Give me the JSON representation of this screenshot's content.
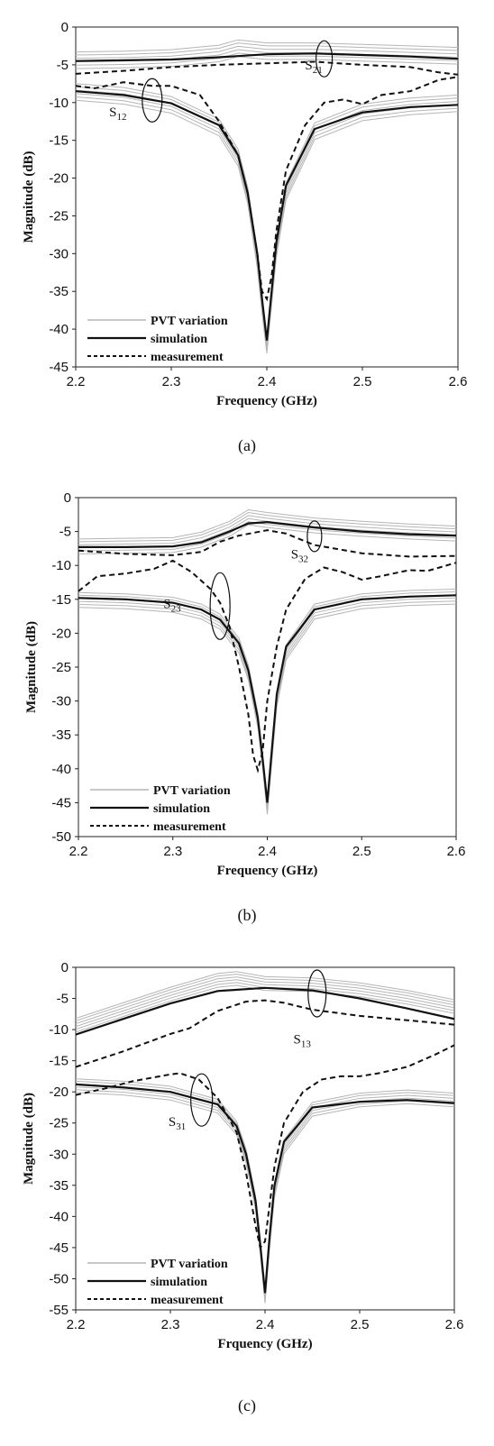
{
  "chart_data": [
    {
      "type": "line",
      "caption": "(a)",
      "xlabel": "Frequency (GHz)",
      "ylabel": "Magnitude (dB)",
      "xlim": [
        2.2,
        2.6
      ],
      "ylim": [
        -45,
        0
      ],
      "xticks": [
        "2.2",
        "2.3",
        "2.4",
        "2.5",
        "2.6"
      ],
      "yticks": [
        "0",
        "-5",
        "-10",
        "-15",
        "-20",
        "-25",
        "-30",
        "-35",
        "-40",
        "-45"
      ],
      "grid": false,
      "legend": [
        "PVT variation",
        "simulation",
        "measurement"
      ],
      "legend_position": "bottom-left",
      "annotations": [
        {
          "base": "S",
          "sub": "21",
          "x": 2.44,
          "y": -5.6
        },
        {
          "base": "S",
          "sub": "12",
          "x": 2.235,
          "y": -11.8
        }
      ],
      "series": [
        {
          "style": "pvt",
          "curve": "S21",
          "x": [
            2.2,
            2.25,
            2.3,
            2.35,
            2.37,
            2.4,
            2.45,
            2.5,
            2.55,
            2.6
          ],
          "y": [
            -4.6,
            -4.5,
            -4.3,
            -3.7,
            -3.0,
            -3.4,
            -3.4,
            -3.6,
            -3.8,
            -4.0
          ]
        },
        {
          "style": "pvt",
          "curve": "S12",
          "x": [
            2.2,
            2.25,
            2.3,
            2.35,
            2.37,
            2.38,
            2.39,
            2.395,
            2.4,
            2.405,
            2.41,
            2.42,
            2.45,
            2.5,
            2.55,
            2.6
          ],
          "y": [
            -8.8,
            -9.3,
            -10.5,
            -13.5,
            -17.5,
            -22.5,
            -31.0,
            -37.0,
            -42.3,
            -36.0,
            -29.5,
            -22.0,
            -14.0,
            -11.5,
            -10.7,
            -10.3
          ]
        },
        {
          "style": "simulation",
          "curve": "S21",
          "x": [
            2.2,
            2.25,
            2.3,
            2.35,
            2.4,
            2.45,
            2.5,
            2.55,
            2.6
          ],
          "y": [
            -4.5,
            -4.4,
            -4.3,
            -4.0,
            -3.6,
            -3.5,
            -3.7,
            -3.9,
            -4.2
          ]
        },
        {
          "style": "simulation",
          "curve": "S12",
          "x": [
            2.2,
            2.25,
            2.3,
            2.35,
            2.37,
            2.38,
            2.39,
            2.395,
            2.4,
            2.405,
            2.41,
            2.42,
            2.45,
            2.5,
            2.55,
            2.6
          ],
          "y": [
            -8.5,
            -9.0,
            -10.1,
            -13.0,
            -17.0,
            -22.0,
            -30.0,
            -36.0,
            -41.5,
            -35.0,
            -28.5,
            -21.0,
            -13.5,
            -11.3,
            -10.6,
            -10.3
          ]
        },
        {
          "style": "measurement",
          "curve": "S21",
          "x": [
            2.2,
            2.25,
            2.3,
            2.35,
            2.4,
            2.45,
            2.5,
            2.55,
            2.58,
            2.6
          ],
          "y": [
            -6.2,
            -5.8,
            -5.3,
            -5.0,
            -4.8,
            -4.6,
            -5.0,
            -5.3,
            -6.0,
            -6.3
          ]
        },
        {
          "style": "measurement",
          "curve": "S12",
          "x": [
            2.2,
            2.22,
            2.25,
            2.28,
            2.3,
            2.33,
            2.35,
            2.37,
            2.38,
            2.39,
            2.395,
            2.4,
            2.405,
            2.41,
            2.42,
            2.44,
            2.46,
            2.48,
            2.5,
            2.52,
            2.55,
            2.58,
            2.6
          ],
          "y": [
            -7.8,
            -8.1,
            -7.3,
            -7.8,
            -7.8,
            -9.0,
            -12.5,
            -17.0,
            -22.0,
            -30.0,
            -35.0,
            -36.0,
            -33.0,
            -27.0,
            -19.0,
            -13.0,
            -10.0,
            -9.6,
            -10.2,
            -9.0,
            -8.5,
            -7.0,
            -6.6
          ]
        }
      ]
    },
    {
      "type": "line",
      "caption": "(b)",
      "xlabel": "Frequency (GHz)",
      "ylabel": "Magnitude (dB)",
      "xlim": [
        2.2,
        2.6
      ],
      "ylim": [
        -50,
        0
      ],
      "xticks": [
        "2.2",
        "2.3",
        "2.4",
        "2.5",
        "2.6"
      ],
      "yticks": [
        "0",
        "-5",
        "-10",
        "-15",
        "-20",
        "-25",
        "-30",
        "-35",
        "-40",
        "-45",
        "-50"
      ],
      "grid": false,
      "legend": [
        "PVT variation",
        "simulation",
        "measurement"
      ],
      "legend_position": "bottom-left",
      "annotations": [
        {
          "base": "S",
          "sub": "32",
          "x": 2.425,
          "y": -9.0
        },
        {
          "base": "S",
          "sub": "23",
          "x": 2.29,
          "y": -16.3
        }
      ],
      "series": [
        {
          "style": "pvt",
          "curve": "S32",
          "x": [
            2.2,
            2.25,
            2.3,
            2.33,
            2.36,
            2.38,
            2.4,
            2.45,
            2.5,
            2.55,
            2.6
          ],
          "y": [
            -7.4,
            -7.3,
            -7.2,
            -6.4,
            -4.8,
            -3.1,
            -3.5,
            -4.3,
            -4.8,
            -5.2,
            -5.5
          ]
        },
        {
          "style": "pvt",
          "curve": "S23",
          "x": [
            2.2,
            2.25,
            2.3,
            2.33,
            2.35,
            2.37,
            2.38,
            2.39,
            2.395,
            2.4,
            2.405,
            2.41,
            2.42,
            2.45,
            2.5,
            2.55,
            2.6
          ],
          "y": [
            -15.3,
            -15.5,
            -16.0,
            -17.0,
            -18.5,
            -22.0,
            -26.0,
            -33.0,
            -39.0,
            -45.8,
            -38.0,
            -30.0,
            -23.0,
            -17.0,
            -15.5,
            -15.0,
            -14.8
          ]
        },
        {
          "style": "simulation",
          "curve": "S32",
          "x": [
            2.2,
            2.25,
            2.3,
            2.33,
            2.36,
            2.38,
            2.4,
            2.45,
            2.5,
            2.55,
            2.6
          ],
          "y": [
            -7.3,
            -7.3,
            -7.2,
            -6.6,
            -5.0,
            -3.8,
            -3.6,
            -4.4,
            -5.0,
            -5.4,
            -5.6
          ]
        },
        {
          "style": "simulation",
          "curve": "S23",
          "x": [
            2.2,
            2.25,
            2.3,
            2.33,
            2.35,
            2.37,
            2.38,
            2.39,
            2.395,
            2.4,
            2.405,
            2.41,
            2.42,
            2.45,
            2.5,
            2.55,
            2.6
          ],
          "y": [
            -14.8,
            -15.0,
            -15.5,
            -16.5,
            -18.0,
            -21.5,
            -25.5,
            -32.5,
            -38.5,
            -45.0,
            -37.0,
            -29.0,
            -22.0,
            -16.5,
            -15.0,
            -14.6,
            -14.4
          ]
        },
        {
          "style": "measurement",
          "curve": "S32",
          "x": [
            2.2,
            2.25,
            2.3,
            2.33,
            2.35,
            2.37,
            2.4,
            2.42,
            2.45,
            2.5,
            2.55,
            2.6
          ],
          "y": [
            -7.8,
            -8.3,
            -8.5,
            -8.0,
            -6.5,
            -5.6,
            -4.8,
            -5.3,
            -7.0,
            -8.2,
            -8.7,
            -8.6
          ]
        },
        {
          "style": "measurement",
          "curve": "S23",
          "x": [
            2.2,
            2.22,
            2.25,
            2.28,
            2.3,
            2.32,
            2.34,
            2.35,
            2.36,
            2.37,
            2.38,
            2.385,
            2.39,
            2.395,
            2.4,
            2.41,
            2.42,
            2.44,
            2.46,
            2.48,
            2.5,
            2.52,
            2.55,
            2.57,
            2.6
          ],
          "y": [
            -13.8,
            -11.6,
            -11.2,
            -10.5,
            -9.3,
            -11.0,
            -13.5,
            -15.5,
            -19.0,
            -25.0,
            -32.0,
            -38.0,
            -40.2,
            -37.5,
            -30.0,
            -22.0,
            -16.5,
            -12.0,
            -10.3,
            -11.0,
            -12.1,
            -11.6,
            -10.7,
            -10.8,
            -9.6
          ]
        }
      ]
    },
    {
      "type": "line",
      "caption": "(c)",
      "xlabel": "Frquency (GHz)",
      "ylabel": "Magnitude (dB)",
      "xlim": [
        2.2,
        2.6
      ],
      "ylim": [
        -55,
        0
      ],
      "xticks": [
        "2.2",
        "2.3",
        "2.4",
        "2.5",
        "2.6"
      ],
      "yticks": [
        "0",
        "-5",
        "-10",
        "-15",
        "-20",
        "-25",
        "-30",
        "-35",
        "-40",
        "-45",
        "-50",
        "-55"
      ],
      "grid": false,
      "legend": [
        "PVT variation",
        "simulation",
        "measurement"
      ],
      "legend_position": "bottom-left",
      "annotations": [
        {
          "base": "S",
          "sub": "13",
          "x": 2.43,
          "y": -12.2
        },
        {
          "base": "S",
          "sub": "31",
          "x": 2.298,
          "y": -25.5
        }
      ],
      "series": [
        {
          "style": "pvt",
          "curve": "S13",
          "x": [
            2.2,
            2.25,
            2.3,
            2.35,
            2.37,
            2.4,
            2.45,
            2.5,
            2.55,
            2.6
          ],
          "y": [
            -9.5,
            -7.0,
            -4.5,
            -2.3,
            -2.0,
            -2.8,
            -3.0,
            -3.8,
            -5.0,
            -6.5
          ]
        },
        {
          "style": "pvt",
          "curve": "S31",
          "x": [
            2.2,
            2.25,
            2.3,
            2.35,
            2.37,
            2.38,
            2.39,
            2.395,
            2.4,
            2.405,
            2.41,
            2.42,
            2.45,
            2.5,
            2.55,
            2.6
          ],
          "y": [
            -19.2,
            -19.6,
            -20.4,
            -22.5,
            -26.0,
            -30.5,
            -38.0,
            -45.0,
            -53.0,
            -44.0,
            -36.0,
            -29.0,
            -23.0,
            -21.5,
            -21.0,
            -21.5
          ]
        },
        {
          "style": "simulation",
          "curve": "S13",
          "x": [
            2.2,
            2.25,
            2.3,
            2.35,
            2.4,
            2.45,
            2.5,
            2.55,
            2.6
          ],
          "y": [
            -10.8,
            -8.3,
            -5.8,
            -3.8,
            -3.3,
            -3.7,
            -5.0,
            -6.6,
            -8.3
          ]
        },
        {
          "style": "simulation",
          "curve": "S31",
          "x": [
            2.2,
            2.25,
            2.3,
            2.35,
            2.37,
            2.38,
            2.39,
            2.395,
            2.4,
            2.405,
            2.41,
            2.42,
            2.45,
            2.5,
            2.55,
            2.6
          ],
          "y": [
            -18.8,
            -19.3,
            -20.0,
            -22.0,
            -25.5,
            -30.0,
            -37.5,
            -44.5,
            -52.3,
            -43.0,
            -35.0,
            -28.0,
            -22.5,
            -21.6,
            -21.3,
            -21.8
          ]
        },
        {
          "style": "measurement",
          "curve": "S13",
          "x": [
            2.2,
            2.25,
            2.3,
            2.32,
            2.35,
            2.38,
            2.4,
            2.42,
            2.45,
            2.5,
            2.55,
            2.6
          ],
          "y": [
            -16.0,
            -13.5,
            -10.7,
            -9.8,
            -7.0,
            -5.5,
            -5.3,
            -5.7,
            -6.8,
            -7.8,
            -8.5,
            -9.2
          ]
        },
        {
          "style": "measurement",
          "curve": "S31",
          "x": [
            2.2,
            2.23,
            2.26,
            2.3,
            2.31,
            2.33,
            2.35,
            2.37,
            2.38,
            2.39,
            2.395,
            2.4,
            2.405,
            2.41,
            2.42,
            2.44,
            2.46,
            2.48,
            2.5,
            2.52,
            2.55,
            2.58,
            2.6
          ],
          "y": [
            -20.5,
            -19.5,
            -18.3,
            -17.2,
            -17.0,
            -18.0,
            -21.0,
            -26.5,
            -33.0,
            -41.5,
            -45.0,
            -44.0,
            -38.0,
            -32.0,
            -25.0,
            -20.0,
            -18.0,
            -17.5,
            -17.5,
            -17.0,
            -16.0,
            -14.0,
            -12.5
          ]
        }
      ]
    }
  ]
}
